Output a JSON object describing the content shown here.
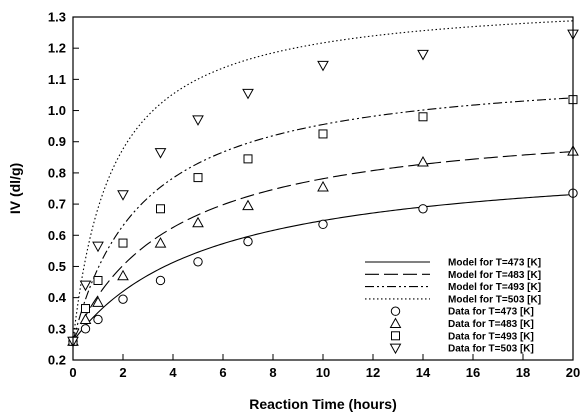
{
  "chart_data": {
    "type": "scatter",
    "xlabel": "Reaction Time (hours)",
    "ylabel": "IV (dl/g)",
    "xlim": [
      0,
      20
    ],
    "ylim": [
      0.2,
      1.3
    ],
    "x_ticks": [
      0,
      2,
      4,
      6,
      8,
      10,
      12,
      14,
      16,
      18,
      20
    ],
    "x_tick_labels": [
      "0",
      "2",
      "4",
      "6",
      "8",
      "10",
      "12",
      "14",
      "16",
      "18",
      "20"
    ],
    "y_ticks": [
      0.2,
      0.3,
      0.4,
      0.5,
      0.6,
      0.7,
      0.8,
      0.9,
      1.0,
      1.1,
      1.2,
      1.3
    ],
    "y_tick_labels": [
      "0.2",
      "0.3",
      "0.4",
      "0.5",
      "0.6",
      "0.7",
      "0.8",
      "0.9",
      "1.0",
      "1.1",
      "1.2",
      "1.3"
    ],
    "grid": false,
    "legend_position": "bottom-right",
    "models": [
      {
        "name": "Model for T=473 [K]",
        "dash": "solid",
        "iv0": 0.26,
        "ivmax": 0.86,
        "half_time": 5.5
      },
      {
        "name": "Model for T=483 [K]",
        "dash": "long-dash",
        "iv0": 0.26,
        "ivmax": 0.99,
        "half_time": 4.0
      },
      {
        "name": "Model for T=493 [K]",
        "dash": "dash-dot-dot",
        "iv0": 0.26,
        "ivmax": 1.15,
        "half_time": 2.8
      },
      {
        "name": "Model for T=503 [K]",
        "dash": "dotted",
        "iv0": 0.26,
        "ivmax": 1.37,
        "half_time": 1.6
      }
    ],
    "series": [
      {
        "name": "Data for T=473 [K]",
        "marker": "circle",
        "x": [
          0,
          0.5,
          1,
          2,
          3.5,
          5,
          7,
          10,
          14,
          20
        ],
        "y": [
          0.26,
          0.3,
          0.33,
          0.395,
          0.455,
          0.515,
          0.58,
          0.635,
          0.685,
          0.735
        ]
      },
      {
        "name": "Data for T=483 [K]",
        "marker": "triangle-up",
        "x": [
          0,
          0.5,
          1,
          2,
          3.5,
          5,
          7,
          10,
          14,
          20
        ],
        "y": [
          0.26,
          0.33,
          0.385,
          0.47,
          0.575,
          0.64,
          0.695,
          0.755,
          0.835,
          0.87
        ]
      },
      {
        "name": "Data for T=493 [K]",
        "marker": "square",
        "x": [
          0,
          0.5,
          1,
          2,
          3.5,
          5,
          7,
          10,
          14,
          20
        ],
        "y": [
          0.26,
          0.365,
          0.455,
          0.575,
          0.685,
          0.785,
          0.845,
          0.925,
          0.98,
          1.035
        ]
      },
      {
        "name": "Data for T=503 [K]",
        "marker": "triangle-down",
        "x": [
          0,
          0.5,
          1,
          2,
          3.5,
          5,
          7,
          10,
          14,
          20
        ],
        "y": [
          0.26,
          0.44,
          0.565,
          0.73,
          0.865,
          0.97,
          1.055,
          1.145,
          1.18,
          1.245
        ]
      }
    ]
  }
}
